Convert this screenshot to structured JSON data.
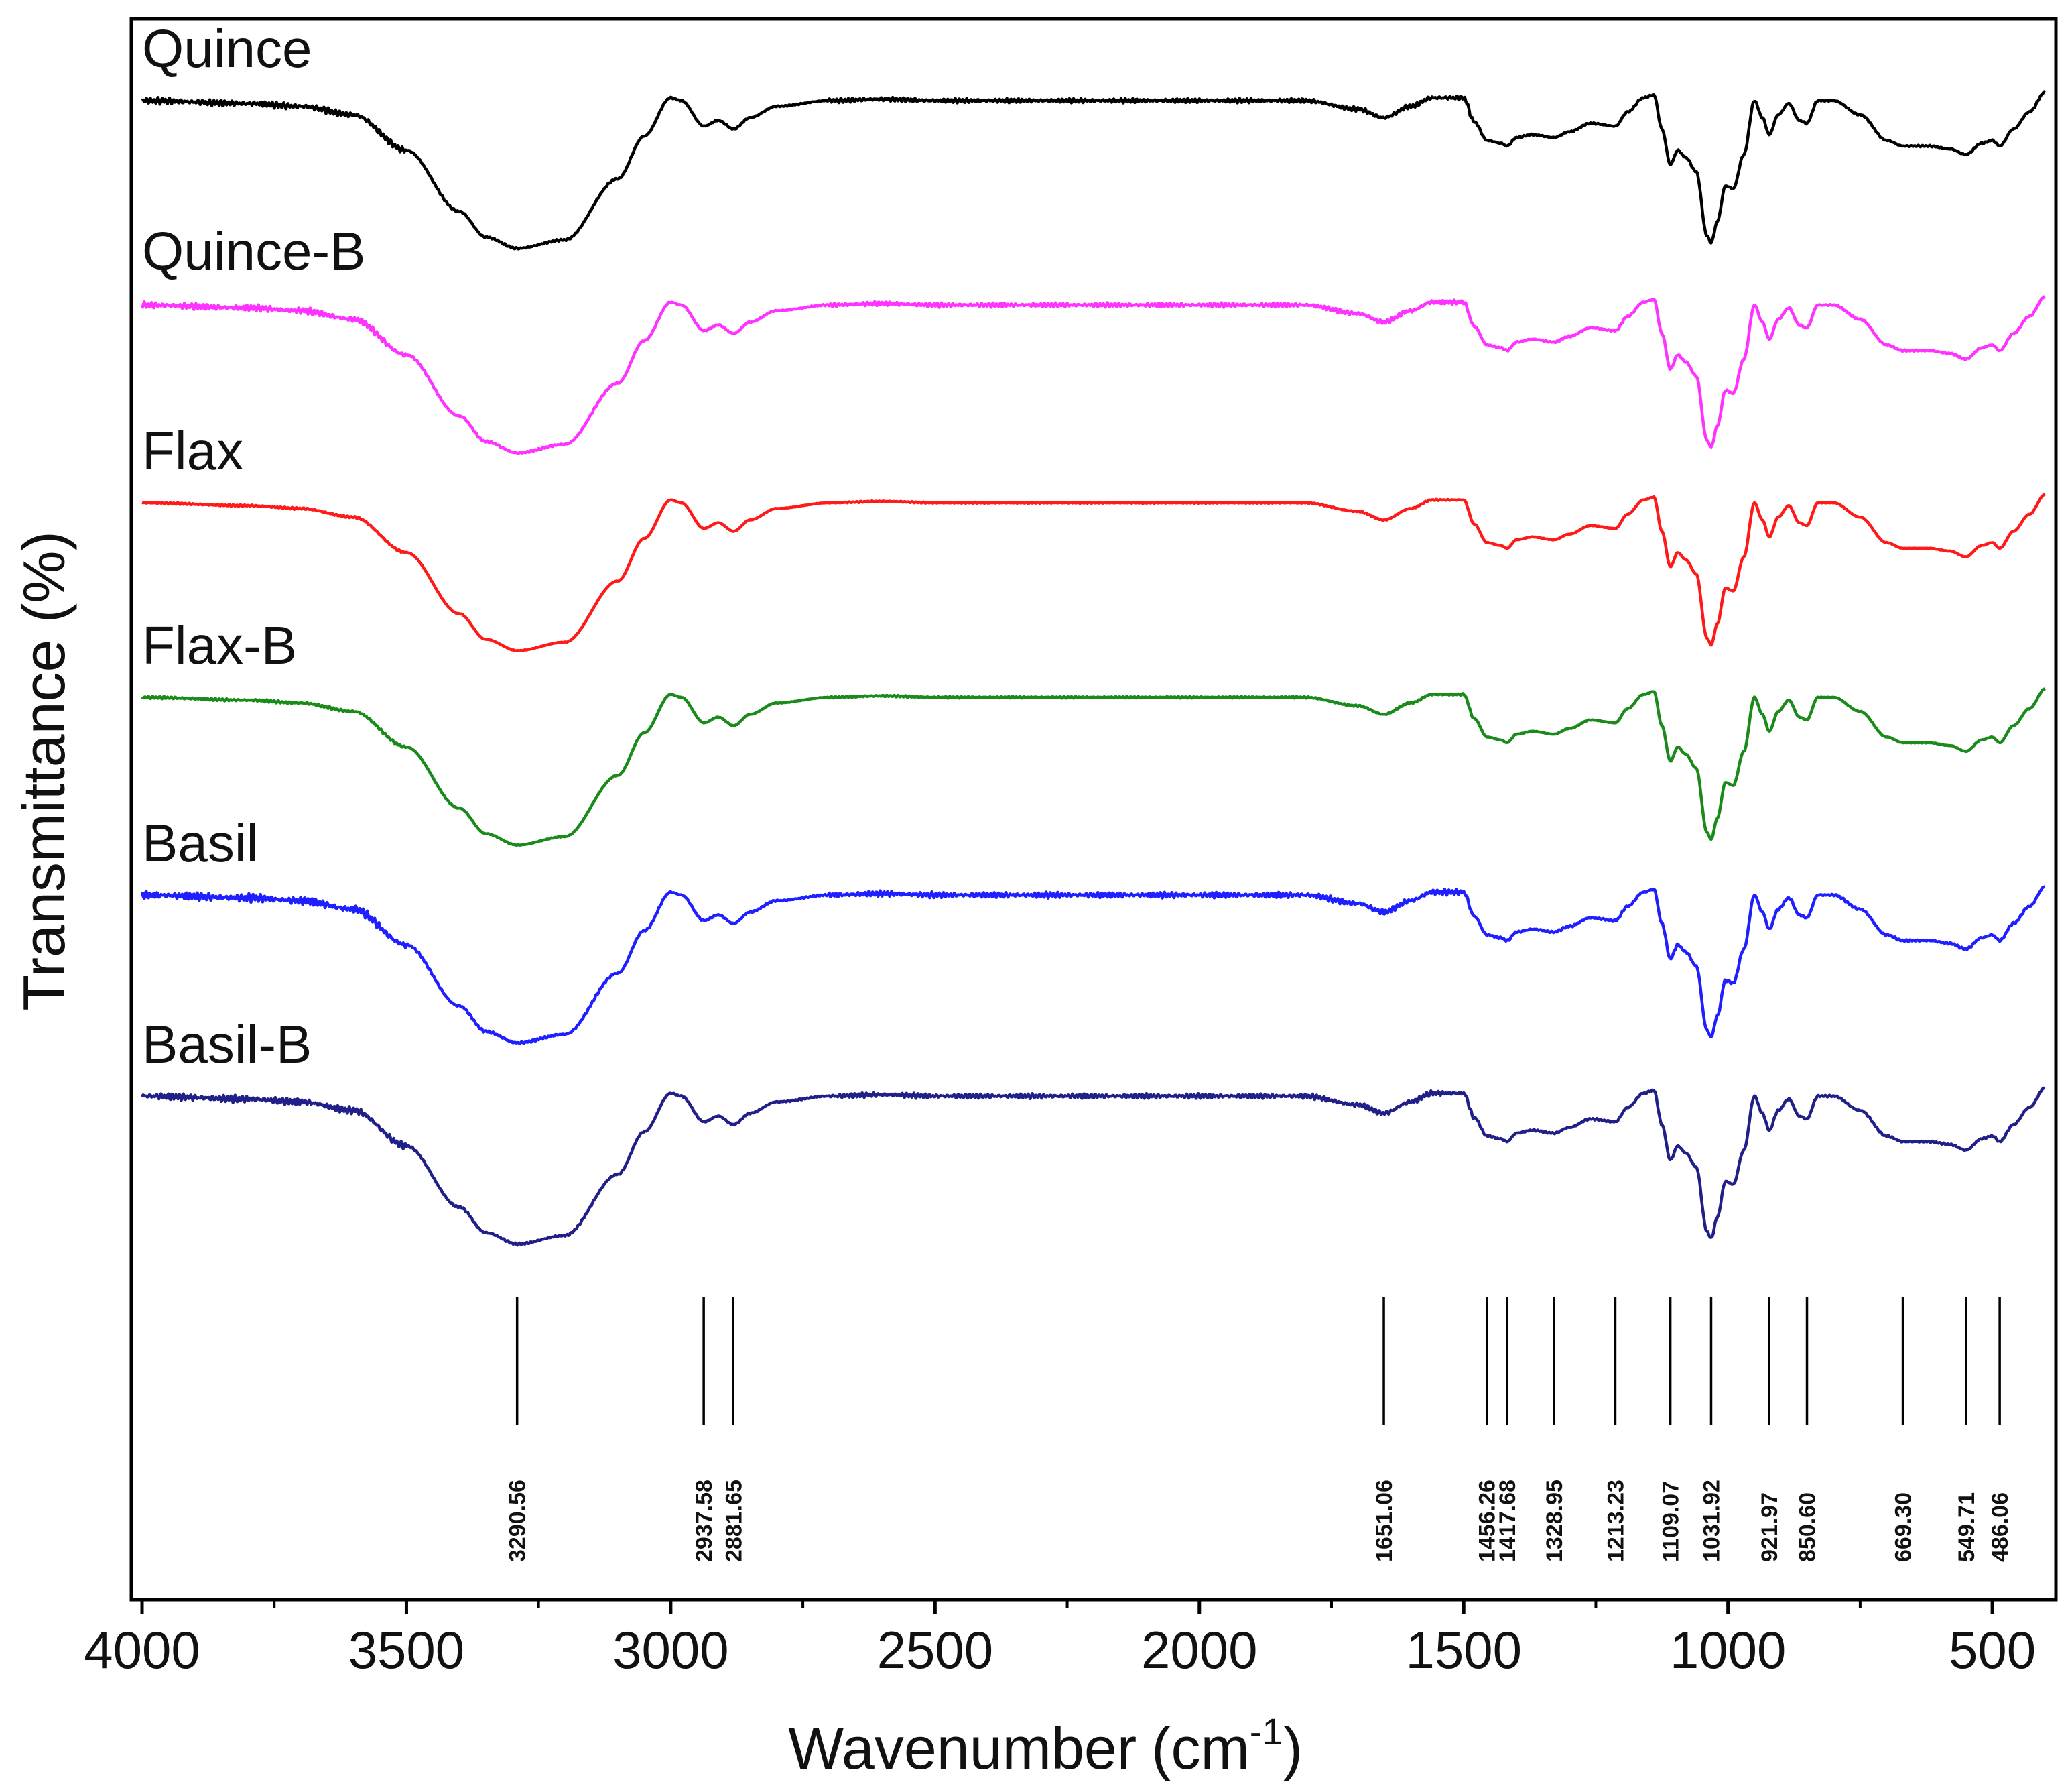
{
  "chart_data": {
    "type": "line",
    "title": "",
    "xlabel": "Wavenumber",
    "xlabel_unit": "(cm",
    "xlabel_unit_exp": "-1",
    "xlabel_unit_close": ")",
    "ylabel": "Transmittance (%)",
    "xlim": [
      4000,
      400
    ],
    "x_reversed": true,
    "xticks": [
      4000,
      3500,
      3000,
      2500,
      2000,
      1500,
      1000,
      500
    ],
    "xticks_minor": [
      3750,
      3250,
      2750,
      2250,
      1750,
      1250,
      750
    ],
    "y_ticks_shown": false,
    "grid": false,
    "legend": "inline labels at top-left of each trace",
    "peak_lines": [
      3290.56,
      2937.58,
      2881.65,
      1651.06,
      1456.26,
      1417.68,
      1328.95,
      1213.23,
      1109.07,
      1031.92,
      921.97,
      850.6,
      669.3,
      549.71,
      486.06
    ],
    "peak_labels": [
      "3290.56",
      "2937.58",
      "2881.65",
      "1651.06",
      "1456.26",
      "1417.68",
      "1328.95",
      "1213.23",
      "1109.07",
      "1031.92",
      "921.97",
      "850.60",
      "669.30",
      "549.71",
      "486.06"
    ],
    "series_profile_note": "Relative transmittance (stacked, offset traces, arbitrary units): 0 = baseline, negative = absorption dip",
    "profile": {
      "x": [
        4000,
        3800,
        3700,
        3600,
        3500,
        3400,
        3350,
        3290,
        3200,
        3100,
        3050,
        3000,
        2980,
        2937,
        2910,
        2881,
        2850,
        2800,
        2700,
        2600,
        2500,
        2000,
        1800,
        1700,
        1651,
        1600,
        1560,
        1500,
        1480,
        1456,
        1430,
        1418,
        1400,
        1370,
        1329,
        1300,
        1260,
        1213,
        1190,
        1160,
        1140,
        1125,
        1109,
        1095,
        1080,
        1060,
        1040,
        1032,
        1020,
        1005,
        990,
        970,
        950,
        935,
        922,
        905,
        885,
        865,
        851,
        830,
        800,
        750,
        700,
        669,
        620,
        580,
        550,
        520,
        500,
        486,
        460,
        430,
        400
      ],
      "y": [
        0,
        -2,
        -4,
        -10,
        -35,
        -78,
        -96,
        -104,
        -98,
        -55,
        -25,
        2,
        0,
        -18,
        -14,
        -20,
        -12,
        -4,
        0,
        1,
        0,
        0,
        0,
        -6,
        -12,
        -4,
        2,
        2,
        -15,
        -28,
        -30,
        -32,
        -26,
        -24,
        -26,
        -22,
        -16,
        -18,
        -8,
        2,
        4,
        -20,
        -45,
        -35,
        -40,
        -50,
        -95,
        -100,
        -85,
        -60,
        -62,
        -38,
        0,
        -12,
        -24,
        -10,
        -2,
        -14,
        -16,
        0,
        0,
        -10,
        -28,
        -32,
        -32,
        -34,
        -38,
        -30,
        -28,
        -32,
        -20,
        -8,
        6
      ]
    },
    "series": [
      {
        "name": "Quince",
        "color": "#000000",
        "noise": 1.0
      },
      {
        "name": "Quince-B",
        "color": "#ff33ff",
        "noise": 1.0
      },
      {
        "name": "Flax",
        "color": "#ff1a1a",
        "noise": 0.3
      },
      {
        "name": "Flax-B",
        "color": "#1a8a1a",
        "noise": 0.4
      },
      {
        "name": "Basil",
        "color": "#1f1fff",
        "noise": 1.3
      },
      {
        "name": "Basil-B",
        "color": "#202088",
        "noise": 1.1
      }
    ]
  }
}
